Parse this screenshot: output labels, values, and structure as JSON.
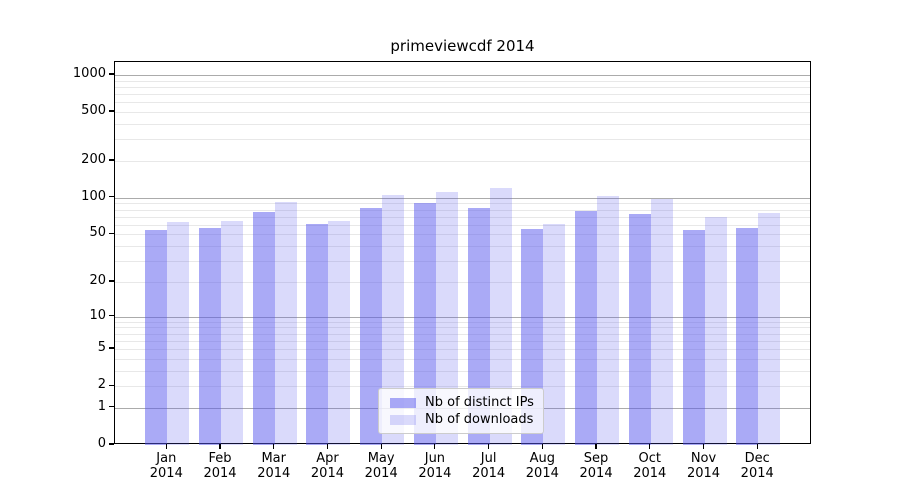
{
  "title": "primeviewcdf 2014",
  "legend": {
    "items": [
      {
        "label": "Nb of distinct IPs",
        "swatch": "dark-periwinkle"
      },
      {
        "label": "Nb of downloads",
        "swatch": "light-lavender"
      }
    ]
  },
  "y_axis": {
    "tick_labels": [
      "0",
      "1",
      "2",
      "5",
      "10",
      "20",
      "50",
      "100",
      "200",
      "500",
      "1000"
    ]
  },
  "x_axis": {
    "year": "2014",
    "months": [
      "Jan",
      "Feb",
      "Mar",
      "Apr",
      "May",
      "Jun",
      "Jul",
      "Aug",
      "Sep",
      "Oct",
      "Nov",
      "Dec"
    ]
  },
  "colors": {
    "bar_base": "#5555ee",
    "bar_dark_fill": "rgba(85,85,238,0.5)",
    "bar_light_fill": "rgba(85,85,238,0.22)",
    "grid_major": "#ababab",
    "grid_minor": "#e8e8e8",
    "spine": "#000000",
    "legend_border": "#cccccc"
  },
  "chart_data": {
    "type": "bar",
    "title": "primeviewcdf 2014",
    "categories": [
      "Jan 2014",
      "Feb 2014",
      "Mar 2014",
      "Apr 2014",
      "May 2014",
      "Jun 2014",
      "Jul 2014",
      "Aug 2014",
      "Sep 2014",
      "Oct 2014",
      "Nov 2014",
      "Dec 2014"
    ],
    "series": [
      {
        "name": "Nb of distinct IPs",
        "color": "#aaabf0",
        "fill": "rgba(85,85,238,0.5)",
        "values": [
          54,
          56,
          77,
          61,
          82,
          90,
          83,
          55,
          78,
          74,
          54,
          57
        ]
      },
      {
        "name": "Nb of downloads",
        "color": "#dcdcfa",
        "fill": "rgba(85,85,238,0.22)",
        "values": [
          63,
          65,
          92,
          65,
          106,
          111,
          121,
          61,
          103,
          97,
          70,
          75
        ]
      }
    ],
    "yscale": "log1p",
    "y_ticks": [
      0,
      1,
      2,
      5,
      10,
      20,
      50,
      100,
      200,
      500,
      1000
    ],
    "y_minor_grid": [
      2,
      3,
      4,
      5,
      6,
      7,
      8,
      9,
      20,
      30,
      40,
      50,
      60,
      70,
      80,
      90,
      200,
      300,
      400,
      500,
      600,
      700,
      800,
      900
    ],
    "y_major_grid": [
      1,
      10,
      100,
      1000
    ],
    "ylim": [
      0,
      1260
    ],
    "grid": true,
    "legend_position": "lower center"
  }
}
